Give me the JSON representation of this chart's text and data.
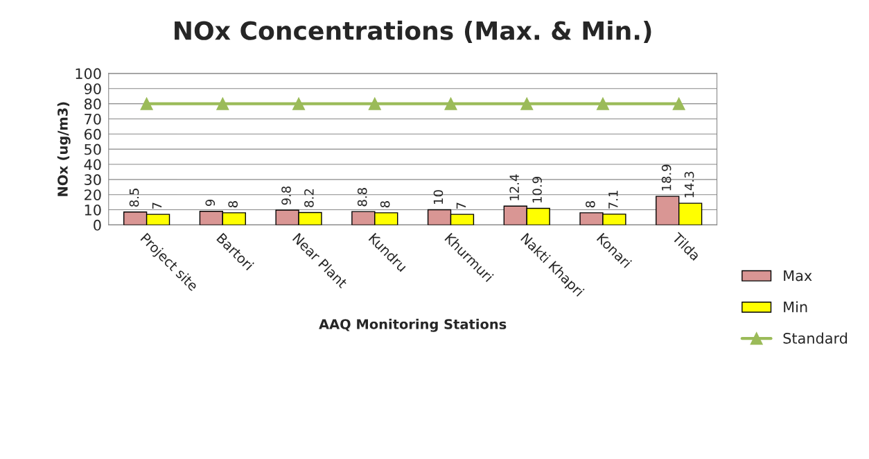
{
  "chart_data": {
    "type": "bar",
    "title": "NOx Concentrations (Max. & Min.)",
    "xlabel": "AAQ Monitoring Stations",
    "ylabel": "NOx (ug/m3)",
    "categories": [
      "Project site",
      "Bartori",
      "Near Plant",
      "Kundru",
      "Khurmuri",
      "Nakti Khapri",
      "Konari",
      "Tilda"
    ],
    "series": [
      {
        "name": "Max",
        "color": "#d99694",
        "values": [
          8.5,
          9,
          9.8,
          8.8,
          10,
          12.4,
          8,
          18.9
        ],
        "value_labels": [
          "8.5",
          "9",
          "9.8",
          "8.8",
          "10",
          "12.4",
          "8",
          "18.9"
        ]
      },
      {
        "name": "Min",
        "color": "#ffff00",
        "values": [
          7,
          8,
          8.2,
          8,
          7,
          10.9,
          7.1,
          14.3
        ],
        "value_labels": [
          "7",
          "8",
          "8.2",
          "8",
          "7",
          "10.9",
          "7.1",
          "14.3"
        ]
      },
      {
        "name": "Standard",
        "type": "line",
        "color": "#9bbb59",
        "marker": "triangle",
        "values": [
          80,
          80,
          80,
          80,
          80,
          80,
          80,
          80
        ]
      }
    ],
    "ylim": [
      0,
      100
    ],
    "yticks": [
      0,
      10,
      20,
      30,
      40,
      50,
      60,
      70,
      80,
      90,
      100
    ],
    "grid": "y",
    "legend": "right"
  }
}
